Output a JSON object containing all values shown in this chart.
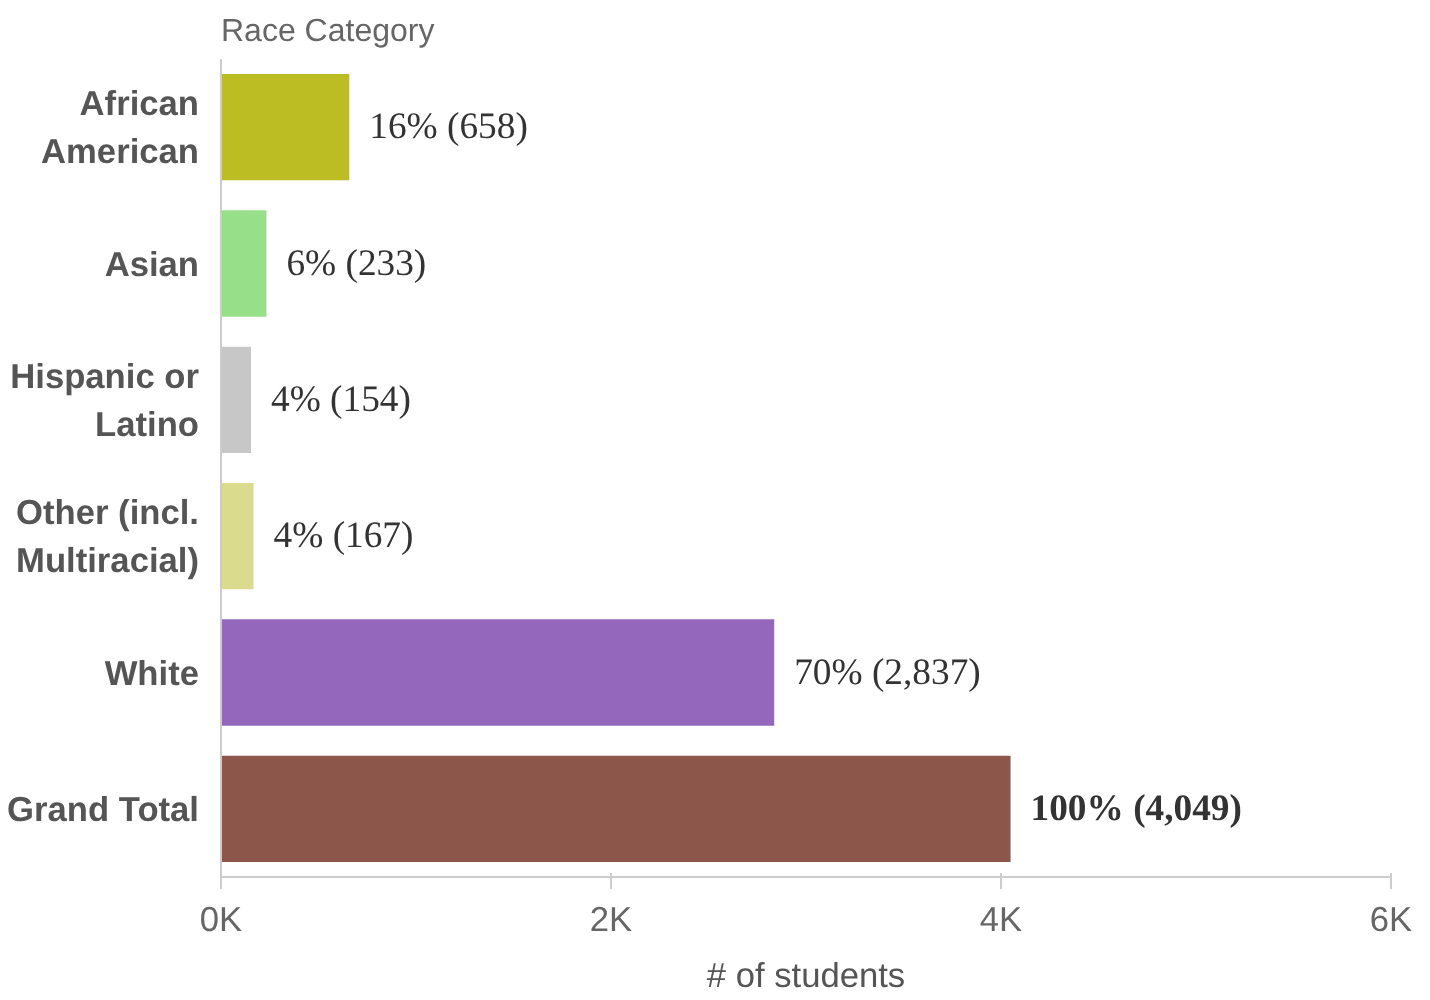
{
  "chart_data": {
    "type": "bar",
    "orientation": "horizontal",
    "ylabel": "Race Category",
    "xlabel": "# of students",
    "categories": [
      "African\nAmerican",
      "Asian",
      "Hispanic or\nLatino",
      "Other (incl.\nMultiracial)",
      "White",
      "Grand Total"
    ],
    "values": [
      658,
      233,
      154,
      167,
      2837,
      4049
    ],
    "colors": [
      "#bcbd22",
      "#98df8a",
      "#c7c7c7",
      "#dbdb8d",
      "#9467bd",
      "#8c564b"
    ],
    "value_labels": [
      "16% (658)",
      "6% (233)",
      "4% (154)",
      "4% (167)",
      "70% (2,837)",
      "100% (4,049)"
    ],
    "xlim": [
      0,
      6000
    ],
    "xticks": [
      {
        "value": 0,
        "label": "0K"
      },
      {
        "value": 2000,
        "label": "2K"
      },
      {
        "value": 4000,
        "label": "4K"
      },
      {
        "value": 6000,
        "label": "6K"
      }
    ],
    "grid": false
  }
}
